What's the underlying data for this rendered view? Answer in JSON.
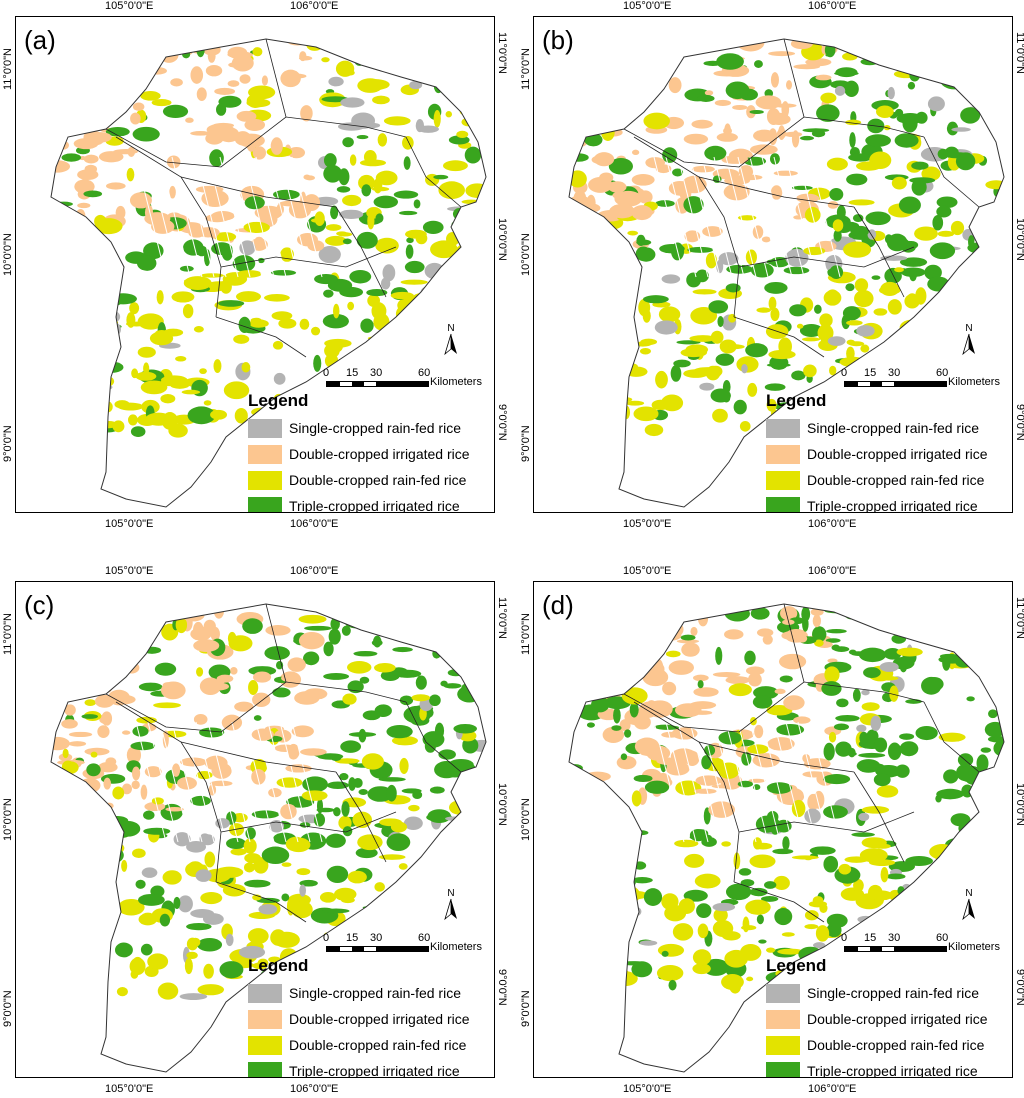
{
  "lon_labels": [
    "105°0'0\"E",
    "106°0'0\"E"
  ],
  "lat_labels": [
    "11°0'0\"N",
    "10°0'0\"N",
    "9°0'0\"N"
  ],
  "north_label": "N",
  "scale": {
    "ticks": [
      "0",
      "15",
      "30",
      "60"
    ],
    "unit": "Kilometers"
  },
  "legend": {
    "title": "Legend",
    "items": [
      {
        "label": "Single-cropped rain-fed rice",
        "color": "#b3b3b3"
      },
      {
        "label": "Double-cropped irrigated rice",
        "color": "#fcc690"
      },
      {
        "label": "Double-cropped rain-fed rice",
        "color": "#e3e300"
      },
      {
        "label": "Triple-cropped irrigated rice",
        "color": "#39a51e"
      }
    ]
  },
  "panels": [
    {
      "id": "a",
      "label": "(a)",
      "triple_share": 0.25
    },
    {
      "id": "b",
      "label": "(b)",
      "triple_share": 0.4
    },
    {
      "id": "c",
      "label": "(c)",
      "triple_share": 0.45
    },
    {
      "id": "d",
      "label": "(d)",
      "triple_share": 0.55
    }
  ]
}
